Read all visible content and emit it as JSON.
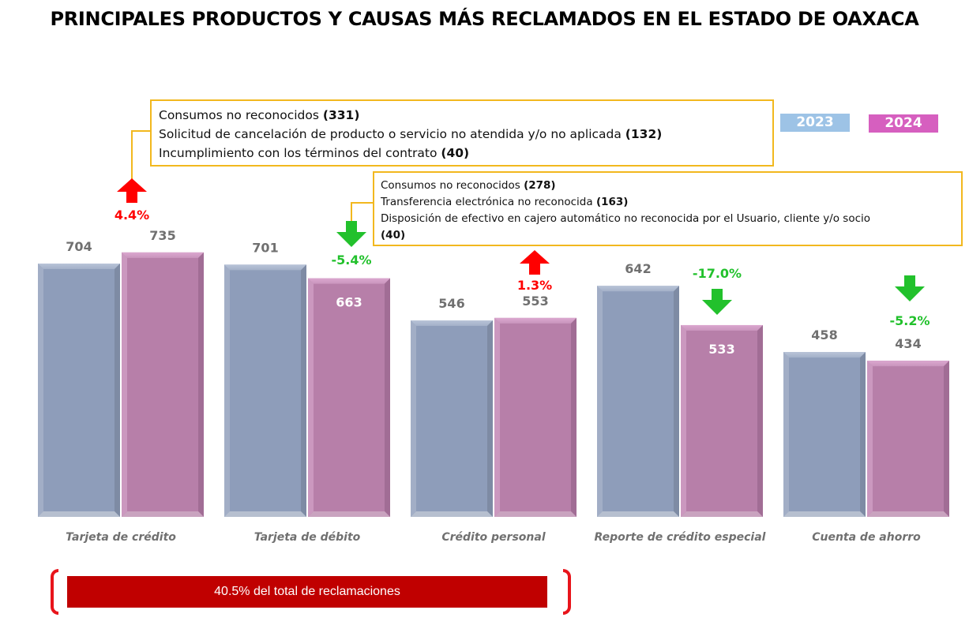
{
  "title": "PRINCIPALES PRODUCTOS Y CAUSAS MÁS RECLAMADOS EN EL ESTADO DE OAXACA",
  "callouts": [
    {
      "product": "Tarjeta de crédito",
      "lines": [
        {
          "text": "Consumos no reconocidos ",
          "value": "(331)"
        },
        {
          "text": "Solicitud de cancelación de producto o servicio no atendida y/o no aplicada ",
          "value": "(132)"
        },
        {
          "text": "Incumplimiento con los términos del contrato ",
          "value": "(40)"
        }
      ]
    },
    {
      "product": "Tarjeta de débito",
      "lines": [
        {
          "text": "Consumos no reconocidos ",
          "value": "(278)"
        },
        {
          "text": "Transferencia electrónica no reconocida ",
          "value": "(163)"
        },
        {
          "text": "Disposición de efectivo en cajero automático no reconocida por el Usuario, cliente y/o socio",
          "value": "(40)"
        }
      ]
    }
  ],
  "summary": {
    "text": "40.5% del total de reclamaciones",
    "color": "#c00000",
    "bracket_color": "#e8141b"
  },
  "chart_data": {
    "type": "bar",
    "title": "PRINCIPALES PRODUCTOS Y CAUSAS MÁS RECLAMADOS EN EL ESTADO DE OAXACA",
    "xlabel": "",
    "ylabel": "",
    "ylim": [
      0,
      735
    ],
    "grid": false,
    "legend_position": "top-right",
    "categories": [
      "Tarjeta de crédito",
      "Tarjeta de débito",
      "Crédito personal",
      "Reporte de crédito especial",
      "Cuenta de ahorro"
    ],
    "series": [
      {
        "name": "2023",
        "color": "#8e9dba",
        "legend_color": "#9dc3e6",
        "values": [
          704,
          701,
          546,
          642,
          458
        ],
        "labels": [
          "704",
          "701",
          "546",
          "642",
          "458"
        ]
      },
      {
        "name": "2024",
        "color": "#b77fa9",
        "legend_color": "#d65fbf",
        "values": [
          735,
          663,
          553,
          533,
          434
        ],
        "labels": [
          "735",
          "663",
          "553",
          "533",
          "434"
        ]
      }
    ],
    "changes": [
      {
        "label": "4.4%",
        "direction": "up",
        "color": "#ff0000"
      },
      {
        "label": "-5.4%",
        "direction": "down",
        "color": "#22c12c"
      },
      {
        "label": "1.3%",
        "direction": "up",
        "color": "#ff0000"
      },
      {
        "label": "-17.0%",
        "direction": "down",
        "color": "#22c12c"
      },
      {
        "label": "-5.2%",
        "direction": "down",
        "color": "#22c12c"
      }
    ]
  }
}
